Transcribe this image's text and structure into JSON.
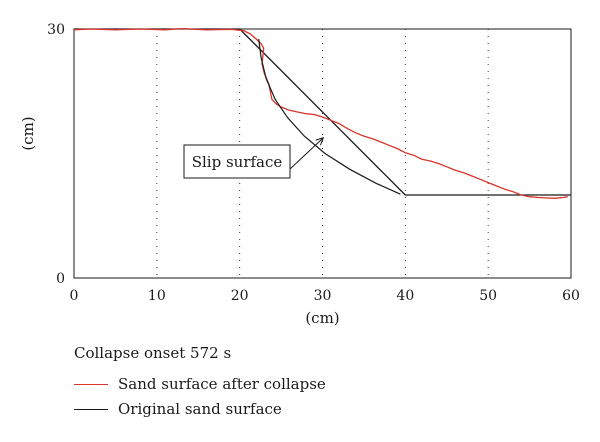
{
  "chart_data": {
    "type": "line",
    "title": "",
    "xlabel": "(cm)",
    "ylabel": "(cm)",
    "xlim": [
      0,
      60
    ],
    "ylim": [
      0,
      30
    ],
    "x_ticks": [
      0,
      10,
      20,
      30,
      40,
      50,
      60
    ],
    "y_ticks": [
      0,
      30
    ],
    "vertical_dotted_gridlines_at": [
      10,
      20,
      30,
      40,
      50
    ],
    "series": [
      {
        "name": "Sand surface after collapse",
        "color": "#d8342b",
        "points": [
          [
            0,
            29.9
          ],
          [
            2,
            30.0
          ],
          [
            5,
            29.9
          ],
          [
            8,
            30.0
          ],
          [
            11,
            29.9
          ],
          [
            13,
            30.05
          ],
          [
            16,
            29.9
          ],
          [
            19,
            29.95
          ],
          [
            20.5,
            29.8
          ],
          [
            21.3,
            29.4
          ],
          [
            22,
            28.8
          ],
          [
            22.6,
            28.2
          ],
          [
            22.9,
            27.7
          ],
          [
            22.8,
            26.8
          ],
          [
            22.7,
            25.8
          ],
          [
            23.0,
            24.6
          ],
          [
            23.5,
            23.4
          ],
          [
            23.9,
            21.5
          ],
          [
            24.5,
            20.9
          ],
          [
            25,
            20.6
          ],
          [
            26,
            20.2
          ],
          [
            27,
            20.0
          ],
          [
            28,
            19.8
          ],
          [
            29,
            19.7
          ],
          [
            30,
            19.4
          ],
          [
            31,
            19.0
          ],
          [
            32,
            18.6
          ],
          [
            33,
            18.0
          ],
          [
            34,
            17.5
          ],
          [
            35,
            17.1
          ],
          [
            36,
            16.8
          ],
          [
            37,
            16.4
          ],
          [
            38,
            16.0
          ],
          [
            39,
            15.6
          ],
          [
            40,
            15.1
          ],
          [
            41,
            14.8
          ],
          [
            42,
            14.3
          ],
          [
            43,
            14.1
          ],
          [
            44,
            13.8
          ],
          [
            45,
            13.4
          ],
          [
            46,
            13.0
          ],
          [
            47,
            12.7
          ],
          [
            48,
            12.3
          ],
          [
            49,
            11.9
          ],
          [
            50,
            11.5
          ],
          [
            51,
            11.1
          ],
          [
            52,
            10.7
          ],
          [
            53,
            10.4
          ],
          [
            54,
            10.0
          ],
          [
            55,
            9.8
          ],
          [
            56,
            9.7
          ],
          [
            57,
            9.65
          ],
          [
            58,
            9.6
          ],
          [
            59,
            9.7
          ],
          [
            59.6,
            9.8
          ]
        ]
      },
      {
        "name": "Original sand surface",
        "color": "#1a1a1a",
        "points": [
          [
            0,
            30
          ],
          [
            20,
            30
          ],
          [
            40,
            10
          ],
          [
            60,
            10
          ]
        ]
      }
    ],
    "slip_surface": {
      "points": [
        [
          22.3,
          28.8
        ],
        [
          22.6,
          26.5
        ],
        [
          23.2,
          24.0
        ],
        [
          24.3,
          21.5
        ],
        [
          25.8,
          19.3
        ],
        [
          27.8,
          17.1
        ],
        [
          30.3,
          15.0
        ],
        [
          33.3,
          13.1
        ],
        [
          36.5,
          11.4
        ],
        [
          39.4,
          10.1
        ]
      ]
    },
    "annotations": [
      {
        "text": "Slip surface",
        "arrow_to": [
          30.1,
          16.9
        ]
      }
    ],
    "legend": {
      "title": "Collapse onset 572 s",
      "position": "bottom-left"
    },
    "grid": false
  }
}
